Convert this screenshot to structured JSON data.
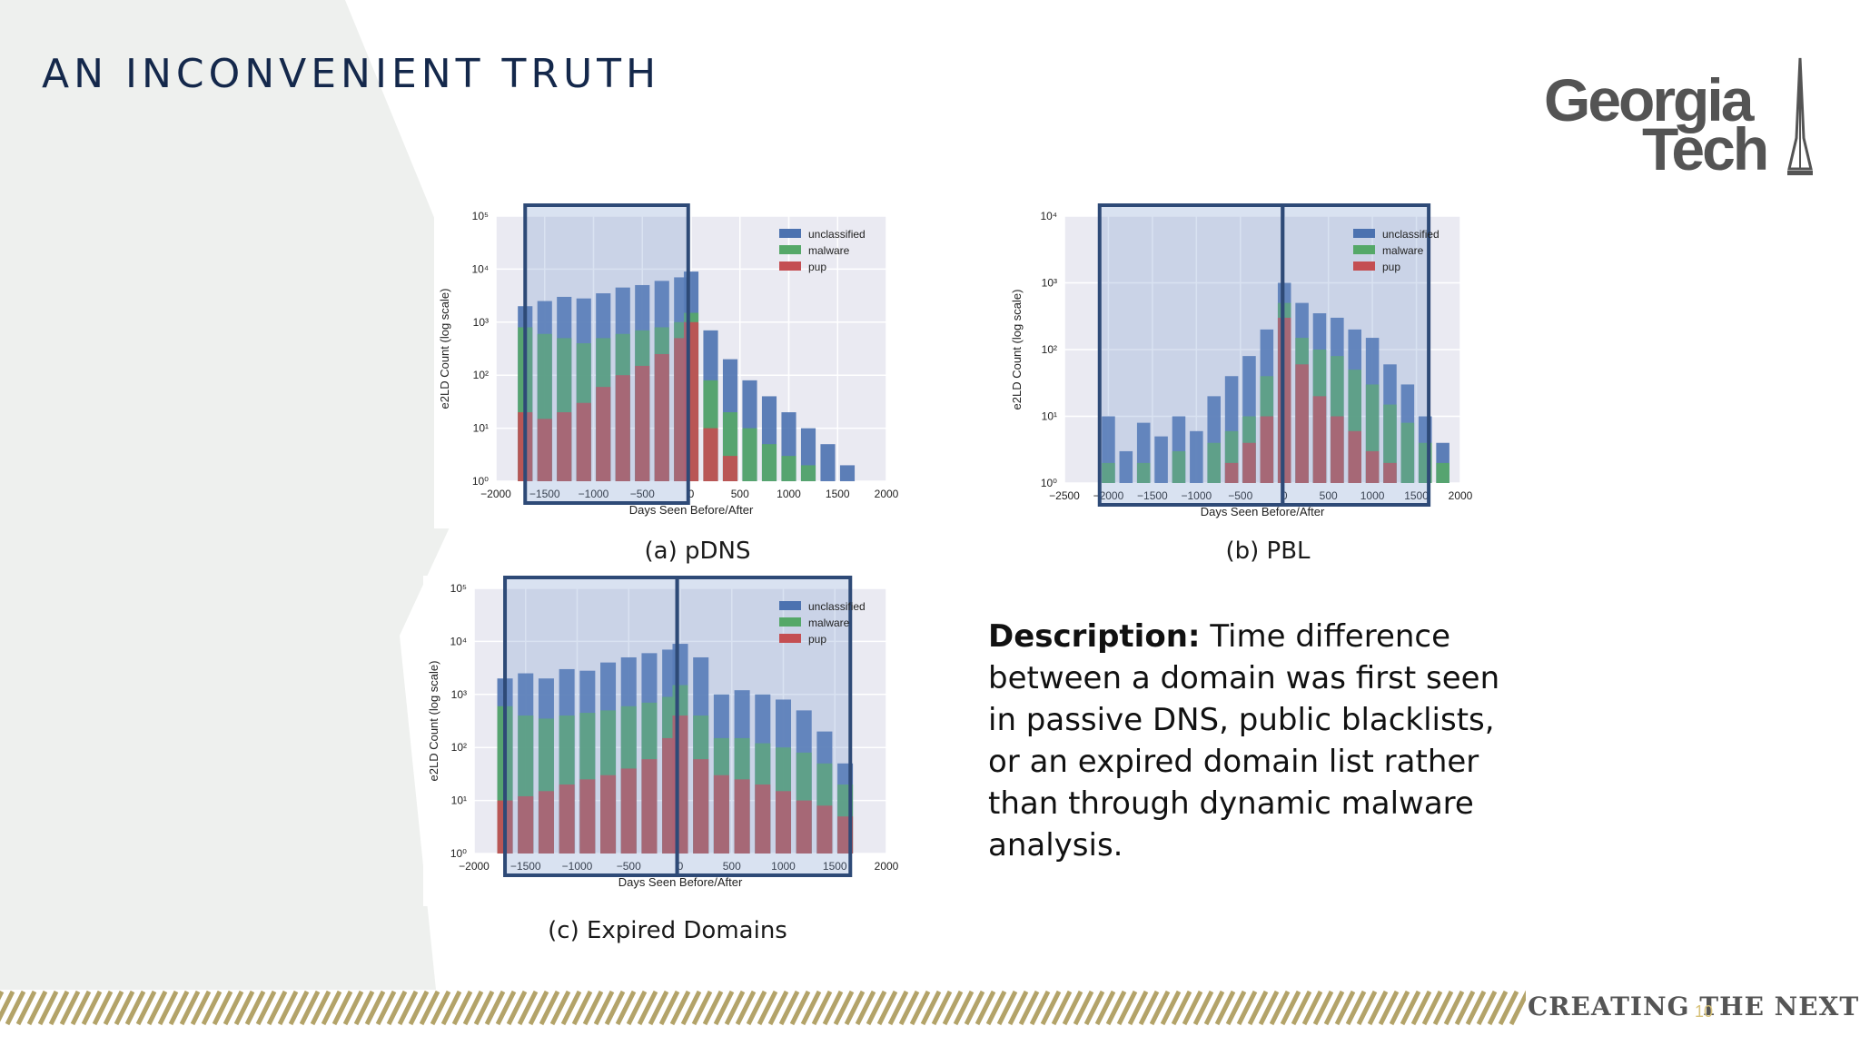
{
  "slide": {
    "title": "AN INCONVENIENT TRUTH",
    "description_label": "Description:",
    "description_text": " Time difference between a domain was first seen in passive DNS, public blacklists, or an expired domain list rather than through dynamic malware analysis.",
    "tagline": "CREATING THE NEXT®",
    "page_number": "10",
    "colors": {
      "title": "#14284b",
      "gold": "#b3a369",
      "gray": "#545454",
      "frame": "#2e4a77"
    }
  },
  "logo": {
    "line1": "Georgia",
    "line2": "Tech",
    "icon": "tech-tower-icon"
  },
  "charts": {
    "pdns": {
      "caption": "(a) pDNS",
      "ylabel": "e2LD Count (log scale)",
      "xlabel": "Days Seen Before/After",
      "yticks": [
        "10⁰",
        "10¹",
        "10²",
        "10³",
        "10⁴",
        "10⁵"
      ],
      "xticks": [
        "−2000",
        "−1500",
        "−1000",
        "−500",
        "0",
        "500",
        "1000",
        "1500",
        "2000"
      ]
    },
    "pbl": {
      "caption": "(b) PBL",
      "ylabel": "e2LD Count (log scale)",
      "xlabel": "Days Seen Before/After",
      "yticks": [
        "10⁰",
        "10¹",
        "10²",
        "10³",
        "10⁴"
      ],
      "xticks": [
        "−2500",
        "−2000",
        "−1500",
        "−1000",
        "−500",
        "0",
        "500",
        "1000",
        "1500",
        "2000"
      ]
    },
    "expired": {
      "caption": "(c) Expired Domains",
      "ylabel": "e2LD Count (log scale)",
      "xlabel": "Days Seen Before/After",
      "yticks": [
        "10⁰",
        "10¹",
        "10²",
        "10³",
        "10⁴",
        "10⁵"
      ],
      "xticks": [
        "−2000",
        "−1500",
        "−1000",
        "−500",
        "0",
        "500",
        "1000",
        "1500",
        "2000"
      ]
    }
  },
  "chart_data": [
    {
      "type": "bar",
      "subtype": "stacked-histogram",
      "xlabel": "Days Seen Before/After",
      "ylabel": "e2LD Count (log scale)",
      "xlim": [
        -2000,
        2000
      ],
      "ylim": [
        1,
        100000
      ],
      "yscale": "log",
      "legend_position": "top-right",
      "series": [
        {
          "name": "unclassified",
          "color": "#4c72b0",
          "x": [
            -1700,
            -1500,
            -1300,
            -1100,
            -900,
            -700,
            -500,
            -300,
            -100,
            0,
            200,
            400,
            600,
            800,
            1000,
            1200,
            1400,
            1600
          ],
          "values": [
            2000,
            2500,
            3000,
            2800,
            3500,
            4500,
            5000,
            6000,
            7000,
            9000,
            700,
            200,
            80,
            40,
            20,
            10,
            5,
            2
          ]
        },
        {
          "name": "malware",
          "color": "#55a868",
          "x": [
            -1700,
            -1500,
            -1300,
            -1100,
            -900,
            -700,
            -500,
            -300,
            -100,
            0,
            200,
            400,
            600,
            800,
            1000,
            1200
          ],
          "values": [
            800,
            600,
            500,
            400,
            500,
            600,
            700,
            800,
            1000,
            1500,
            80,
            20,
            10,
            5,
            3,
            2
          ]
        },
        {
          "name": "pup",
          "color": "#c44e52",
          "x": [
            -1700,
            -1500,
            -1300,
            -1100,
            -900,
            -700,
            -500,
            -300,
            -100,
            0,
            200,
            400
          ],
          "values": [
            20,
            15,
            20,
            30,
            60,
            100,
            150,
            250,
            500,
            1000,
            10,
            3
          ]
        }
      ]
    },
    {
      "type": "bar",
      "subtype": "stacked-histogram",
      "xlabel": "Days Seen Before/After",
      "ylabel": "e2LD Count (log scale)",
      "xlim": [
        -2500,
        2000
      ],
      "ylim": [
        1,
        10000
      ],
      "yscale": "log",
      "legend_position": "top-right",
      "series": [
        {
          "name": "unclassified",
          "color": "#4c72b0",
          "x": [
            -2000,
            -1800,
            -1600,
            -1400,
            -1200,
            -1000,
            -800,
            -600,
            -400,
            -200,
            0,
            200,
            400,
            600,
            800,
            1000,
            1200,
            1400,
            1600,
            1800
          ],
          "values": [
            10,
            3,
            8,
            5,
            10,
            6,
            20,
            40,
            80,
            200,
            1000,
            500,
            350,
            300,
            200,
            150,
            60,
            30,
            10,
            4
          ]
        },
        {
          "name": "malware",
          "color": "#55a868",
          "x": [
            -2000,
            -1600,
            -1200,
            -800,
            -600,
            -400,
            -200,
            0,
            200,
            400,
            600,
            800,
            1000,
            1200,
            1400,
            1600,
            1800
          ],
          "values": [
            2,
            2,
            3,
            4,
            6,
            10,
            40,
            500,
            150,
            100,
            80,
            50,
            30,
            15,
            8,
            4,
            2
          ]
        },
        {
          "name": "pup",
          "color": "#c44e52",
          "x": [
            -600,
            -400,
            -200,
            0,
            200,
            400,
            600,
            800,
            1000,
            1200
          ],
          "values": [
            2,
            4,
            10,
            300,
            60,
            20,
            10,
            6,
            3,
            2
          ]
        }
      ]
    },
    {
      "type": "bar",
      "subtype": "stacked-histogram",
      "xlabel": "Days Seen Before/After",
      "ylabel": "e2LD Count (log scale)",
      "xlim": [
        -2000,
        2000
      ],
      "ylim": [
        1,
        100000
      ],
      "yscale": "log",
      "legend_position": "top-right",
      "series": [
        {
          "name": "unclassified",
          "color": "#4c72b0",
          "x": [
            -1700,
            -1500,
            -1300,
            -1100,
            -900,
            -700,
            -500,
            -300,
            -100,
            0,
            200,
            400,
            600,
            800,
            1000,
            1200,
            1400,
            1600
          ],
          "values": [
            2000,
            2500,
            2000,
            3000,
            2800,
            4000,
            5000,
            6000,
            7000,
            9000,
            5000,
            1000,
            1200,
            1000,
            800,
            500,
            200,
            50
          ]
        },
        {
          "name": "malware",
          "color": "#55a868",
          "x": [
            -1700,
            -1500,
            -1300,
            -1100,
            -900,
            -700,
            -500,
            -300,
            -100,
            0,
            200,
            400,
            600,
            800,
            1000,
            1200,
            1400,
            1600
          ],
          "values": [
            600,
            400,
            350,
            400,
            450,
            500,
            600,
            700,
            900,
            1500,
            400,
            150,
            150,
            120,
            100,
            80,
            50,
            20
          ]
        },
        {
          "name": "pup",
          "color": "#c44e52",
          "x": [
            -1700,
            -1500,
            -1300,
            -1100,
            -900,
            -700,
            -500,
            -300,
            -100,
            0,
            200,
            400,
            600,
            800,
            1000,
            1200,
            1400,
            1600
          ],
          "values": [
            10,
            12,
            15,
            20,
            25,
            30,
            40,
            60,
            150,
            400,
            60,
            30,
            25,
            20,
            15,
            10,
            8,
            5
          ]
        }
      ]
    }
  ]
}
